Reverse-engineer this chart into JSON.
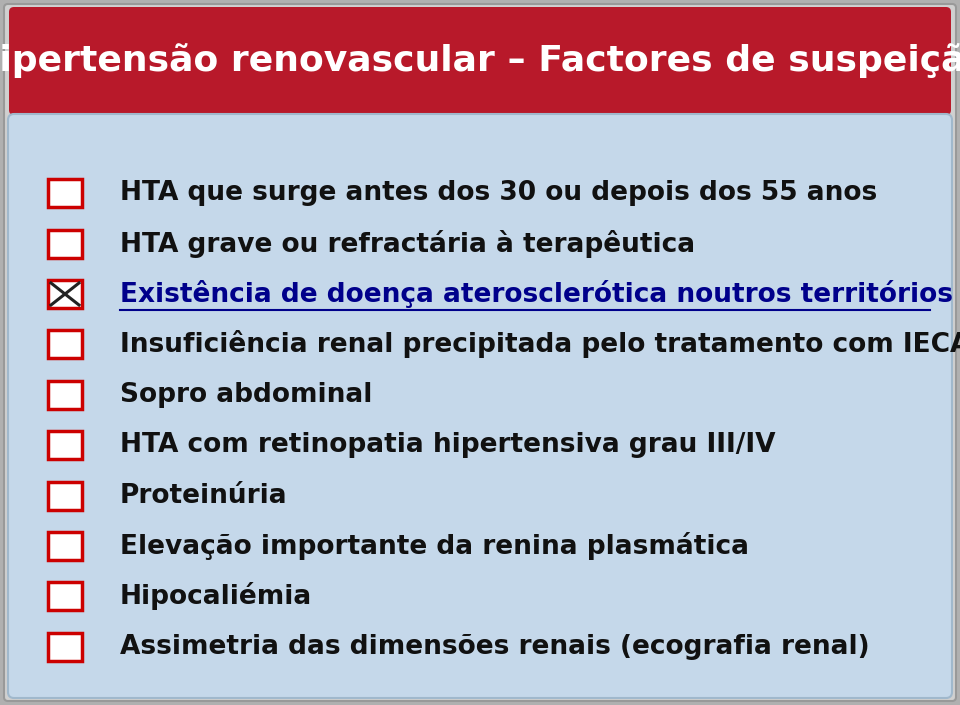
{
  "title": "Hipertensão renovascular – Factores de suspeição",
  "title_color": "#FFFFFF",
  "title_bg_color": "#B8192A",
  "title_bg_top": "#C0202E",
  "outer_bg": "#C8C8C8",
  "inner_bg": "#C8DAEA",
  "body_bg_color": "#C5D8EA",
  "bullet_items": [
    {
      "text": "HTA que surge antes dos 30 ou depois dos 55 anos",
      "special": false,
      "color": "#111111"
    },
    {
      "text": "HTA grave ou refractária à terapêutica",
      "special": false,
      "color": "#111111"
    },
    {
      "text": "Existência de doença aterosclerótica noutros territórios",
      "special": true,
      "color": "#00008B"
    },
    {
      "text": "Insuficiência renal precipitada pelo tratamento com IECA",
      "special": false,
      "color": "#111111"
    },
    {
      "text": "Sopro abdominal",
      "special": false,
      "color": "#111111"
    },
    {
      "text": "HTA com retinopatia hipertensiva grau III/IV",
      "special": false,
      "color": "#111111"
    },
    {
      "text": "Proteinúria",
      "special": false,
      "color": "#111111"
    },
    {
      "text": "Elevação importante da renina plasmática",
      "special": false,
      "color": "#111111"
    },
    {
      "text": "Hipocaliémia",
      "special": false,
      "color": "#111111"
    },
    {
      "text": "Assimetria das dimensões renais (ecografia renal)",
      "special": false,
      "color": "#111111"
    }
  ],
  "checkbox_color": "#CC0000",
  "figsize": [
    9.6,
    7.05
  ],
  "dpi": 100
}
